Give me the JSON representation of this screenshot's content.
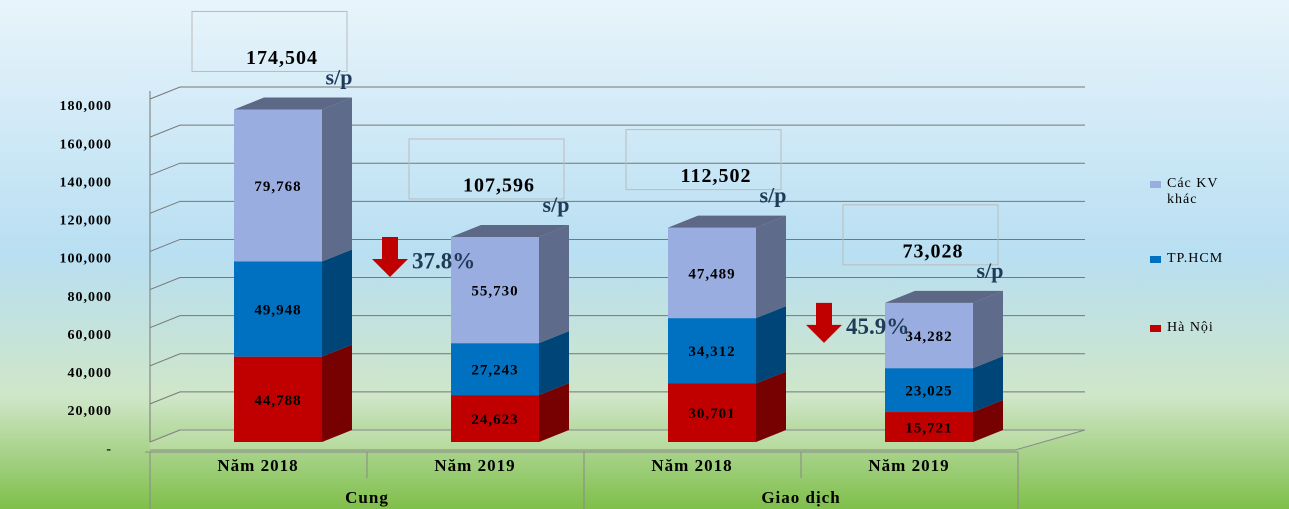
{
  "chart_data": {
    "type": "bar3d-stacked",
    "categories": [
      "Năm 2018",
      "Năm 2019",
      "Năm 2018",
      "Năm 2019"
    ],
    "groups": [
      {
        "label": "Cung",
        "span": 2
      },
      {
        "label": "Giao dịch",
        "span": 2
      }
    ],
    "series": [
      {
        "name": "Hà Nội",
        "color": "#c00000",
        "values": [
          44788,
          24623,
          30701,
          15721
        ],
        "value_labels": [
          "44,788",
          "24,623",
          "30,701",
          "15,721"
        ]
      },
      {
        "name": "TP.HCM",
        "color": "#0070c0",
        "values": [
          49948,
          27243,
          34312,
          23025
        ],
        "value_labels": [
          "49,948",
          "27,243",
          "34,312",
          "23,025"
        ]
      },
      {
        "name": "Các KV khác",
        "color": "#9aade0",
        "values": [
          79768,
          55730,
          47489,
          34282
        ],
        "value_labels": [
          "79,768",
          "55,730",
          "47,489",
          "34,282"
        ]
      }
    ],
    "totals": {
      "values": [
        174504,
        107596,
        112502,
        73028
      ],
      "value_labels": [
        "174,504",
        "107,596",
        "112,502",
        "73,028"
      ],
      "unit": "s/p"
    },
    "annotations": [
      {
        "text": "37.8%",
        "category": 0
      },
      {
        "text": "45.9%",
        "category": 2
      }
    ],
    "ylim": [
      0,
      180000
    ],
    "yticks": [
      {
        "value": 0,
        "label": "-"
      },
      {
        "value": 20000,
        "label": "20,000"
      },
      {
        "value": 40000,
        "label": "40,000"
      },
      {
        "value": 60000,
        "label": "60,000"
      },
      {
        "value": 80000,
        "label": "80,000"
      },
      {
        "value": 100000,
        "label": "100,000"
      },
      {
        "value": 120000,
        "label": "120,000"
      },
      {
        "value": 140000,
        "label": "140,000"
      },
      {
        "value": 160000,
        "label": "160,000"
      },
      {
        "value": 180000,
        "label": "180,000"
      }
    ],
    "grid": true
  }
}
